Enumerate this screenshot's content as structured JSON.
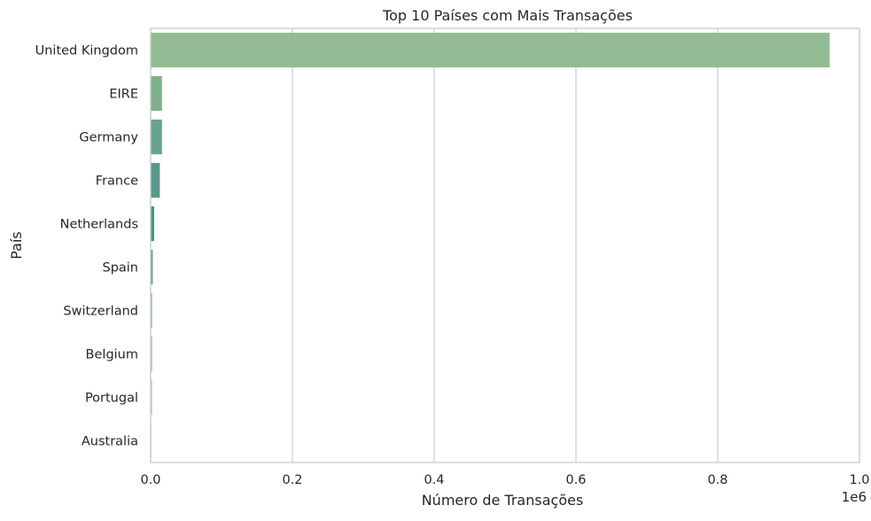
{
  "chart_data": {
    "type": "bar",
    "orientation": "horizontal",
    "title": "Top 10 Países com Mais Transações",
    "xlabel": "Número de Transações",
    "ylabel": "País",
    "x_scale_label": "1e6",
    "xlim": [
      0,
      1.0
    ],
    "x_ticks": [
      0.0,
      0.2,
      0.4,
      0.6,
      0.8,
      1.0
    ],
    "x_tick_labels": [
      "0.0",
      "0.2",
      "0.4",
      "0.6",
      "0.8",
      "1.0"
    ],
    "grid": "vertical",
    "categories": [
      "United Kingdom",
      "EIRE",
      "Germany",
      "France",
      "Netherlands",
      "Spain",
      "Switzerland",
      "Belgium",
      "Portugal",
      "Australia"
    ],
    "values": [
      0.958,
      0.016,
      0.016,
      0.013,
      0.005,
      0.003,
      0.002,
      0.002,
      0.002,
      0.001
    ],
    "colors": [
      "#93bb93",
      "#7eaf8c",
      "#6aa38b",
      "#5a988a",
      "#4f9285",
      "#63a09c",
      "#7cacae",
      "#93b5bf",
      "#a7bacb",
      "#bcc2d6"
    ]
  }
}
